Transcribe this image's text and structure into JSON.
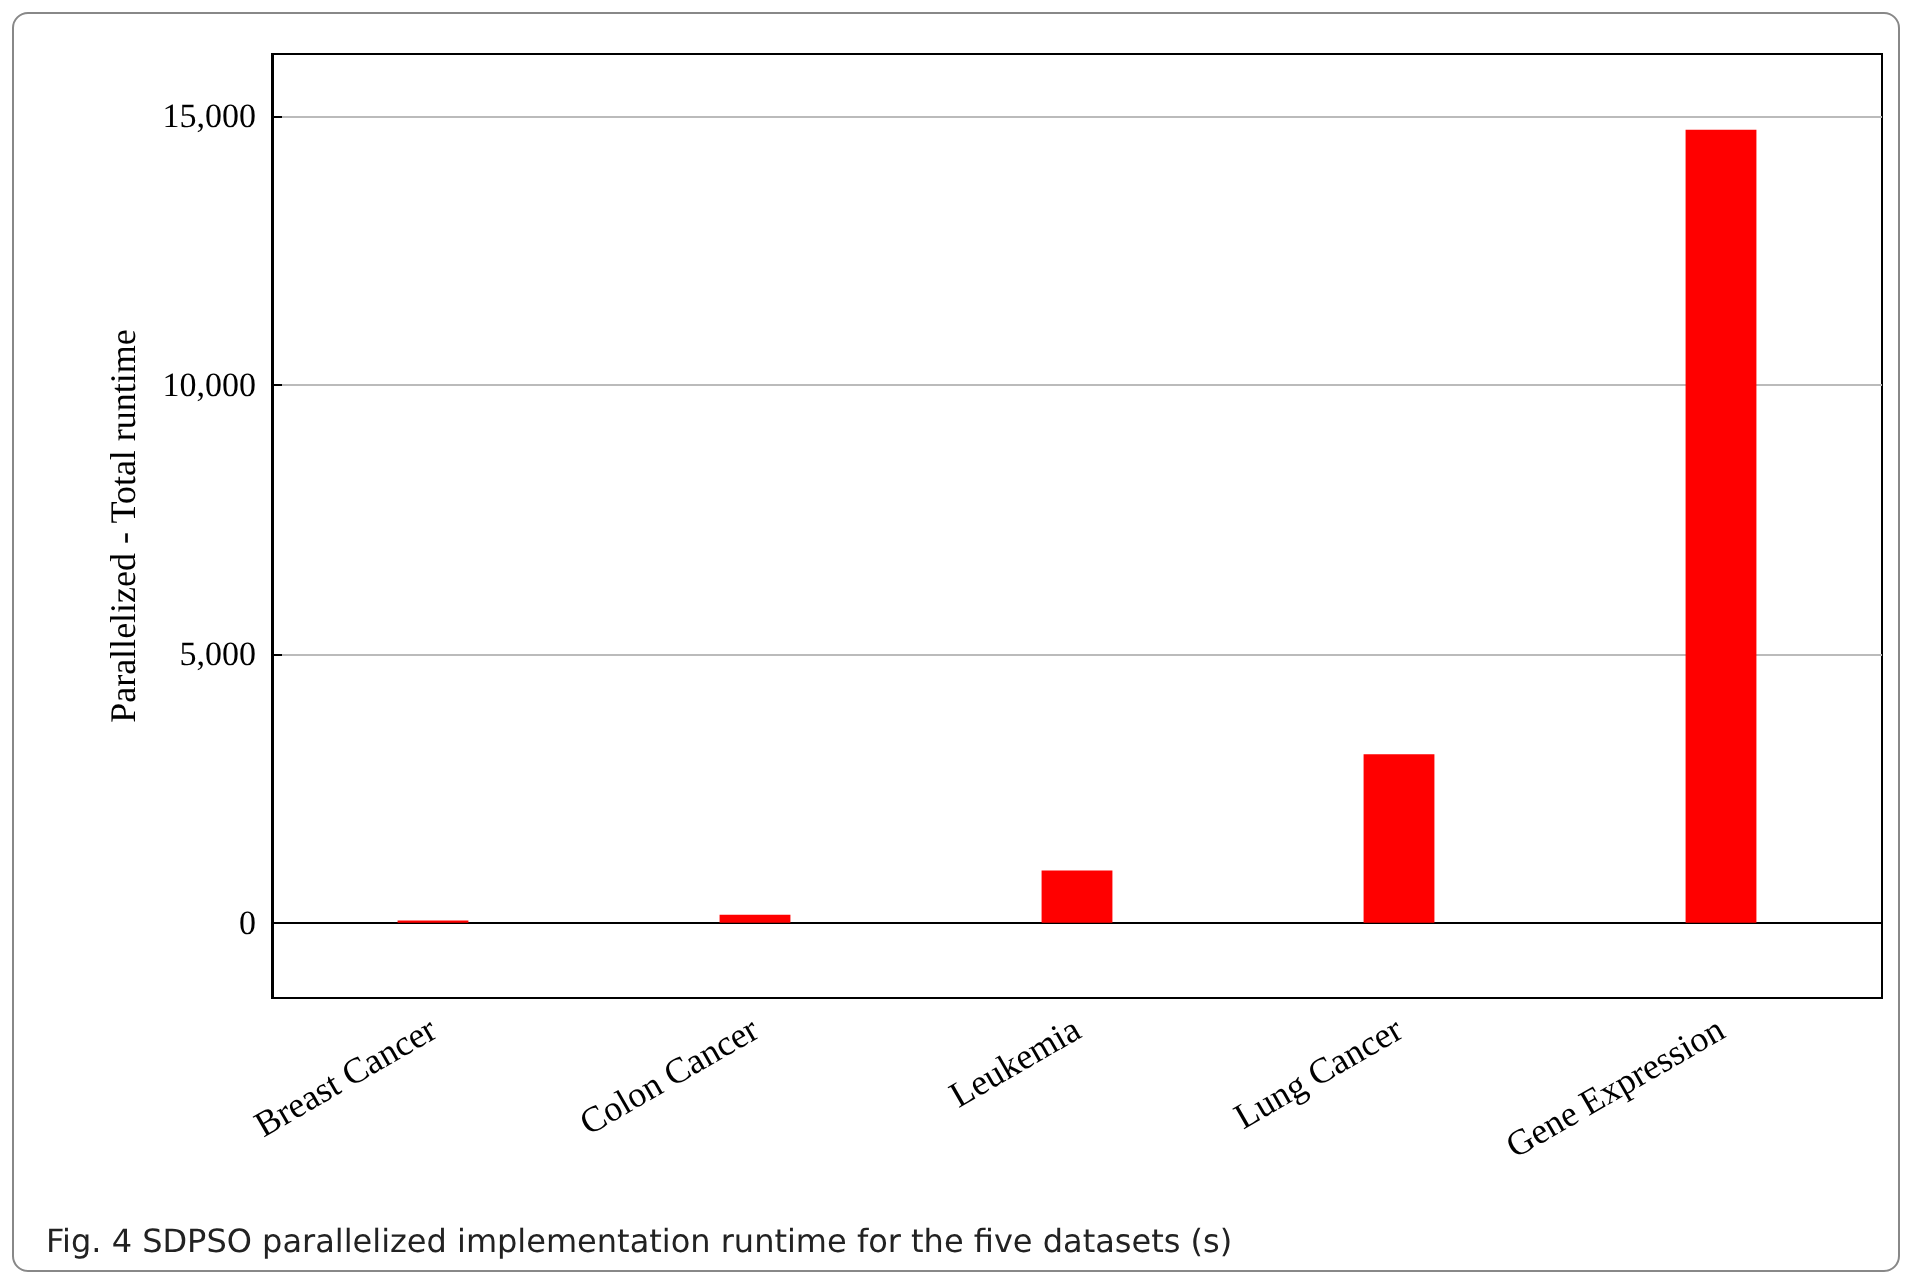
{
  "chart_data": {
    "type": "bar",
    "ylabel": "Parallelized - Total runtime",
    "categories": [
      "Breast Cancer",
      "Colon Cancer",
      "Leukemia",
      "Lung Cancer",
      "Gene Expression"
    ],
    "values": [
      40,
      150,
      970,
      3130,
      14740
    ],
    "color": "#ff0000",
    "ylim": [
      -1400,
      16150
    ],
    "yticks": [
      {
        "value": 0,
        "label": "0"
      },
      {
        "value": 5000,
        "label": "5,000"
      },
      {
        "value": 10000,
        "label": "10,000"
      },
      {
        "value": 15000,
        "label": "15,000"
      }
    ],
    "grid": "y",
    "annotations": [
      "Fig. 4  SDPSO parallelized implementation runtime for the five datasets (s)"
    ]
  }
}
